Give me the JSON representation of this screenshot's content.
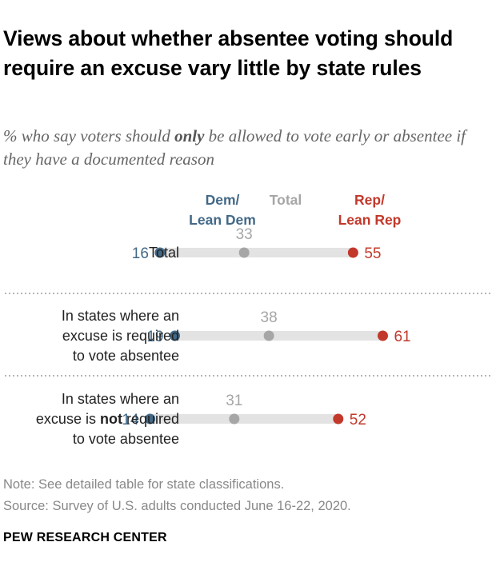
{
  "title": "Views about whether absentee voting should require an excuse vary little by state rules",
  "subtitle": {
    "before": "% who say voters should ",
    "emphasis": "only",
    "after": " be allowed to vote early or absentee if they have a documented reason"
  },
  "legend": {
    "dem": "Dem/\nLean Dem",
    "total": "Total",
    "rep": "Rep/\nLean Rep"
  },
  "colors": {
    "dem": "#436987",
    "total": "#a6a6a6",
    "rep": "#c2392b",
    "bar": "#e3e3e3"
  },
  "chart_data": {
    "type": "dot",
    "series": [
      {
        "key": "dem",
        "name": "Dem/Lean Dem"
      },
      {
        "key": "total",
        "name": "Total"
      },
      {
        "key": "rep",
        "name": "Rep/Lean Rep"
      }
    ],
    "rows": [
      {
        "label": [
          {
            "text": "Total"
          }
        ],
        "dem": 16,
        "total": 33,
        "rep": 55
      },
      {
        "label": [
          {
            "text": "In states where an"
          },
          {
            "text": "excuse is required"
          },
          {
            "text": "to vote absentee"
          }
        ],
        "dem": 19,
        "total": 38,
        "rep": 61
      },
      {
        "label": [
          {
            "text": "In states where an"
          },
          {
            "text": "excuse is "
          },
          {
            "text": "not",
            "bold": true
          },
          {
            "text": " required"
          },
          {
            "text": "to vote absentee"
          }
        ],
        "dem": 14,
        "total": 31,
        "rep": 52
      }
    ]
  },
  "notes": {
    "note": "Note: See detailed table for state classifications.",
    "source": "Source: Survey of U.S. adults conducted June 16-22, 2020."
  },
  "brand": "PEW RESEARCH CENTER"
}
